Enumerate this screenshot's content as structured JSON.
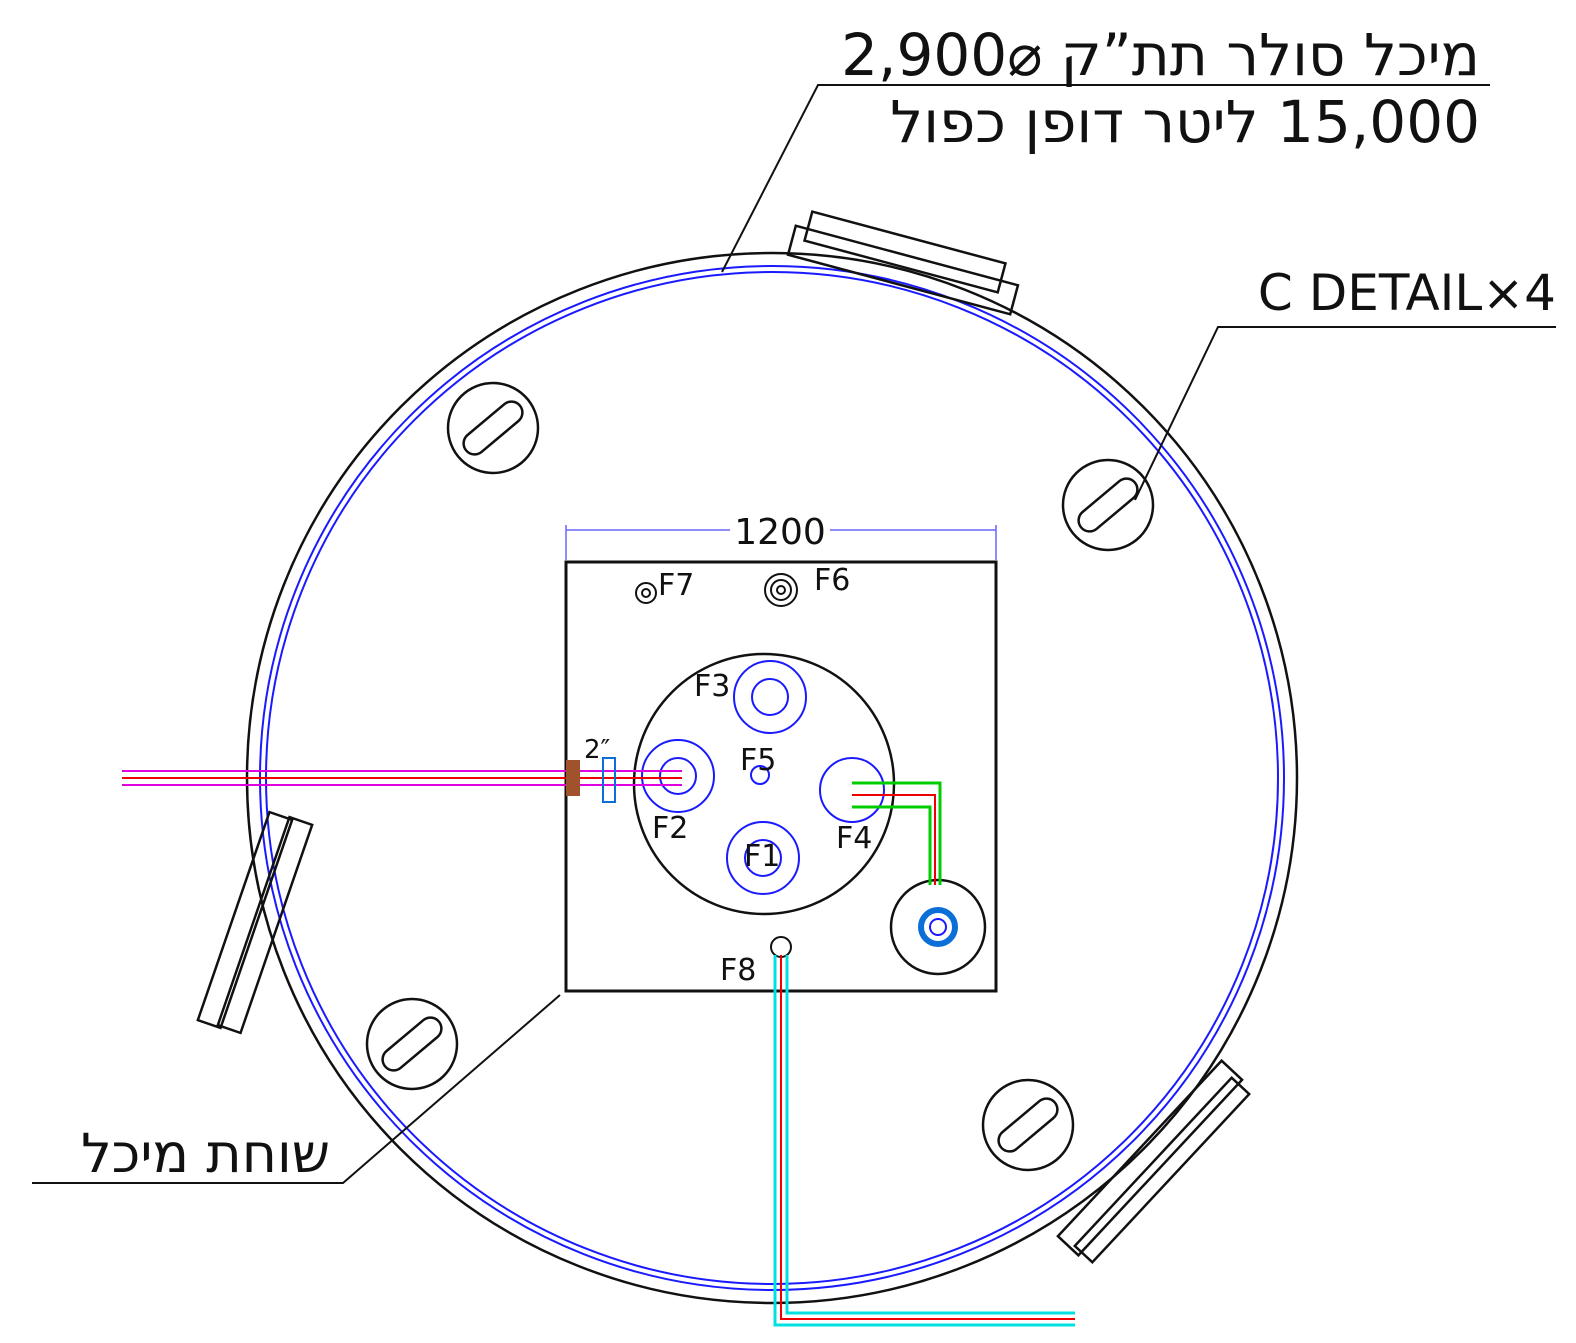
{
  "header": {
    "line1": "מיכל סולר תת”ק ⌀2,900",
    "line2": "15,000 ליטר דופן כפול"
  },
  "callouts": {
    "detail": "C DETAIL×4",
    "pit": "שוחת מיכל",
    "pipe_size": "2″"
  },
  "dimension": {
    "width": "1200"
  },
  "fittings": [
    "F1",
    "F2",
    "F3",
    "F4",
    "F5",
    "F6",
    "F7",
    "F8"
  ]
}
